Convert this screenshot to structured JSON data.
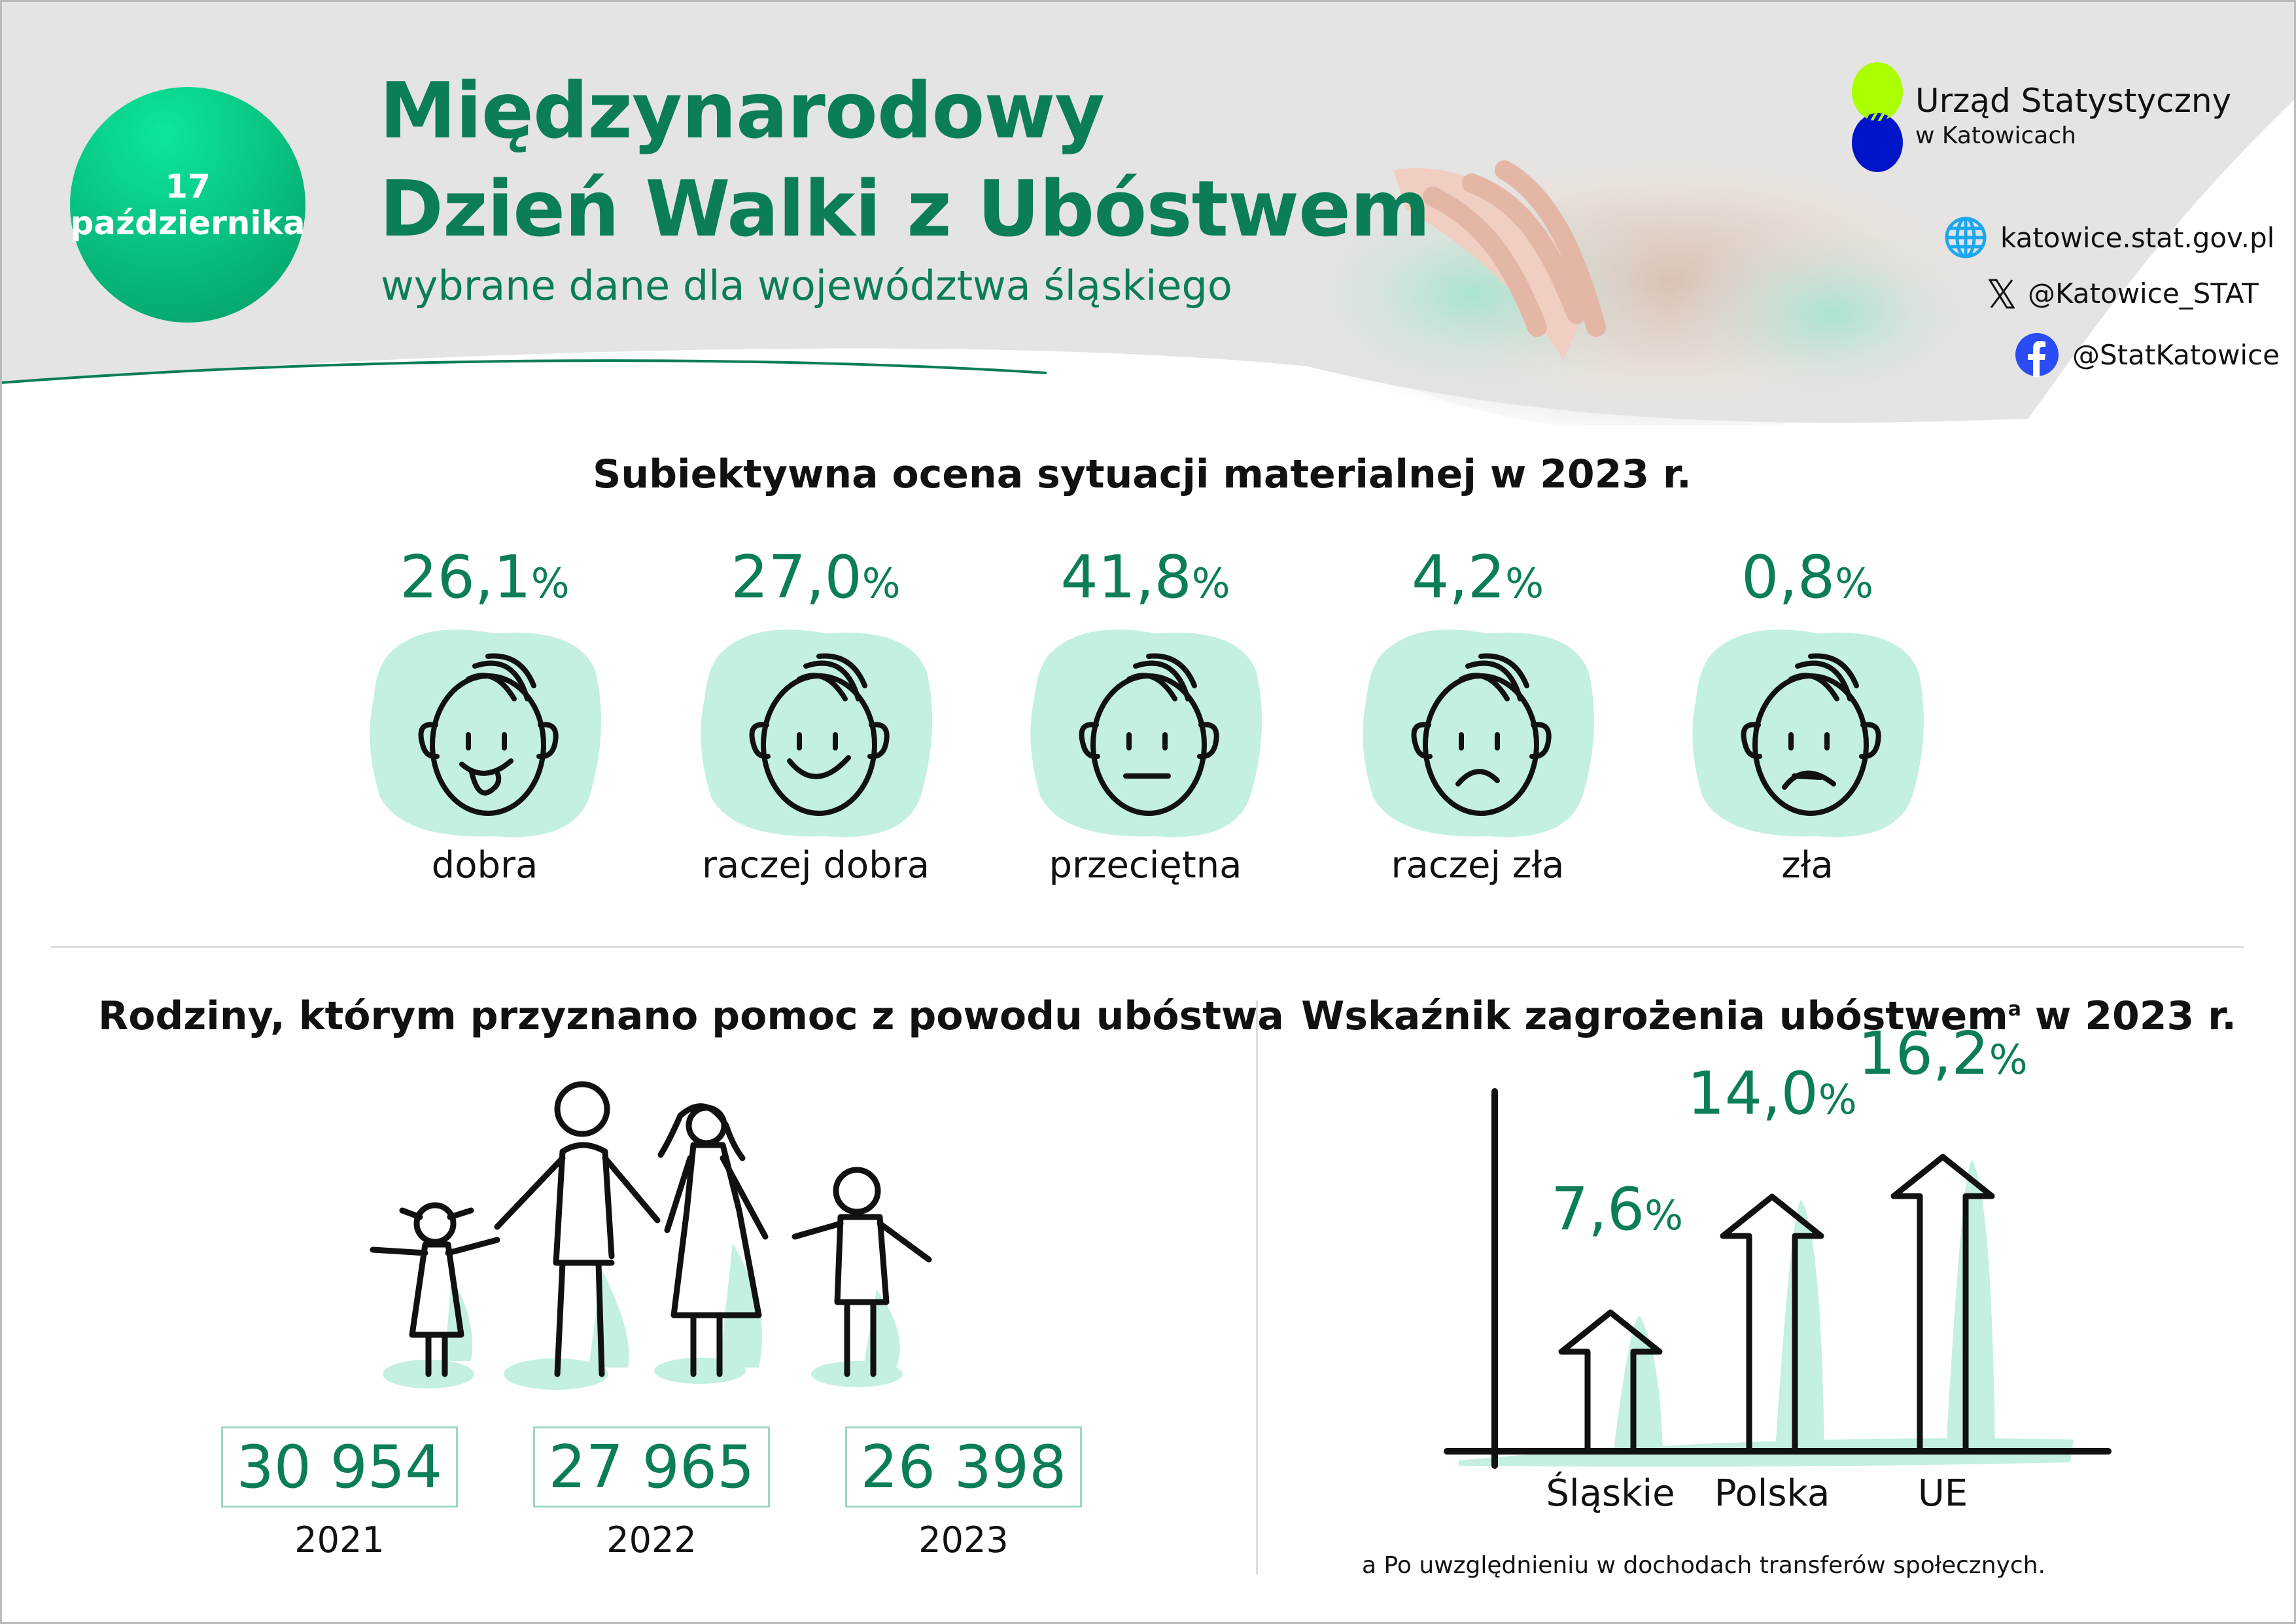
{
  "header": {
    "date_badge": {
      "day": "17",
      "month": "października"
    },
    "title_line1": "Międzynarodowy",
    "title_line2": "Dzień Walki z Ubóstwem",
    "subtitle": "wybrane dane dla województwa śląskiego"
  },
  "logo": {
    "line1": "Urząd Statystyczny",
    "line2": "w Katowicach",
    "colors": [
      "#aaff00",
      "#0015c8"
    ]
  },
  "contacts": [
    {
      "icon": "globe-icon",
      "text": "katowice.stat.gov.pl"
    },
    {
      "icon": "x-logo-icon",
      "text": "@Katowice_STAT"
    },
    {
      "icon": "facebook-icon",
      "text": "@StatKatowice"
    }
  ],
  "assessment": {
    "title": "Subiektywna ocena sytuacji materialnej w 2023 r.",
    "items": [
      {
        "value": "26,1",
        "unit": "%",
        "label": "dobra",
        "icon": "happy-tongue-face-icon"
      },
      {
        "value": "27,0",
        "unit": "%",
        "label": "raczej dobra",
        "icon": "smiling-face-icon"
      },
      {
        "value": "41,8",
        "unit": "%",
        "label": "przeciętna",
        "icon": "neutral-face-icon"
      },
      {
        "value": "4,2",
        "unit": "%",
        "label": "raczej zła",
        "icon": "frowning-face-icon"
      },
      {
        "value": "0,8",
        "unit": "%",
        "label": "zła",
        "icon": "sad-face-icon"
      }
    ]
  },
  "families": {
    "title": "Rodziny, którym przyznano pomoc z powodu ubóstwa",
    "items": [
      {
        "value": "30 954",
        "year": "2021"
      },
      {
        "value": "27 965",
        "year": "2022"
      },
      {
        "value": "26 398",
        "year": "2023"
      }
    ]
  },
  "chart_data": {
    "type": "bar",
    "title": "Wskaźnik zagrożenia ubóstwem",
    "title_sup": "a",
    "title_suffix": " w 2023 r.",
    "categories": [
      "Śląskie",
      "Polska",
      "UE"
    ],
    "values": [
      7.6,
      14.0,
      16.2
    ],
    "labels": [
      "7,6",
      "14,0",
      "16,2"
    ],
    "unit": "%",
    "ylim": [
      0,
      17
    ],
    "grid": false,
    "footnote": "a Po uwzględnieniu w dochodach transferów społecznych.",
    "accent": "#c3f0e0"
  },
  "colors": {
    "accent": "#0b7d57",
    "mint": "#c3f0e0"
  }
}
